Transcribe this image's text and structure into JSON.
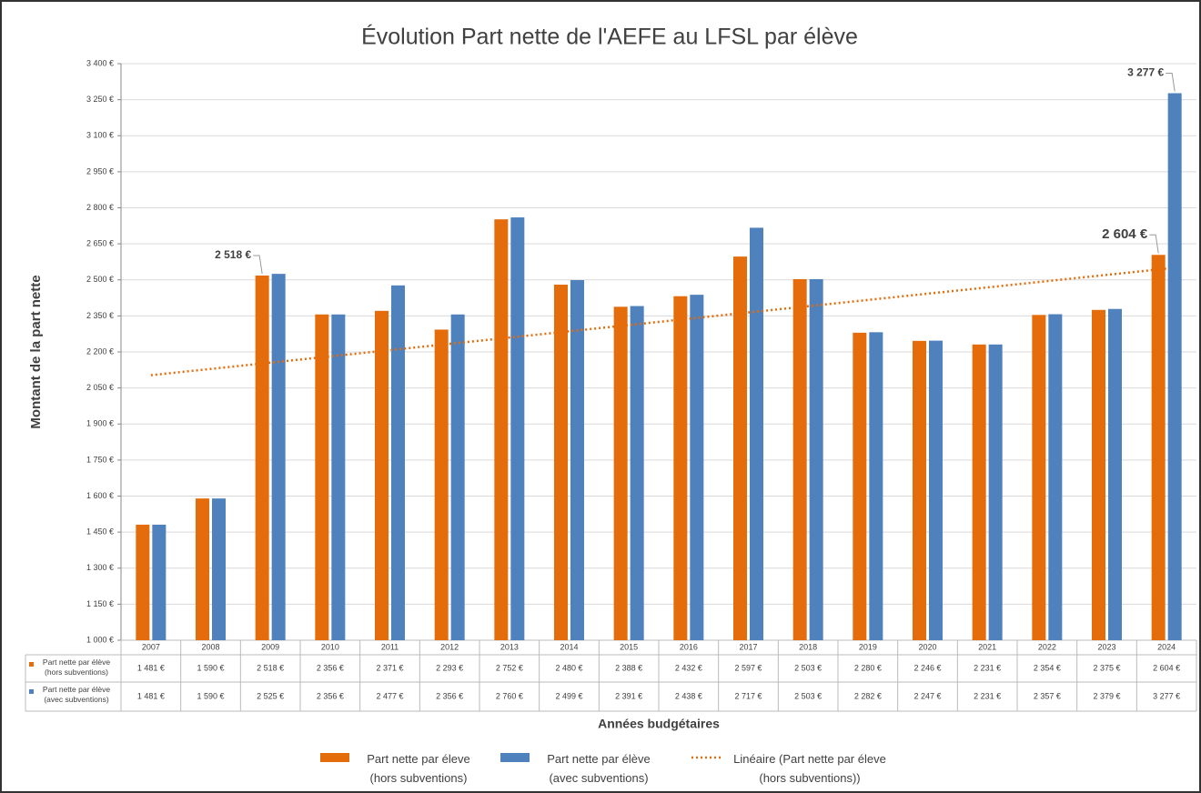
{
  "chart_data": {
    "type": "bar",
    "title": "Évolution Part nette de l'AEFE au LFSL par élève",
    "ylabel": "Montant de la part nette",
    "xlabel": "Années budgétaires",
    "categories": [
      "2007",
      "2008",
      "2009",
      "2010",
      "2011",
      "2012",
      "2013",
      "2014",
      "2015",
      "2016",
      "2017",
      "2018",
      "2019",
      "2020",
      "2021",
      "2022",
      "2023",
      "2024"
    ],
    "series": [
      {
        "name": "Part nette par élève (hors subventions)",
        "legend": "Part nette par éleve (hors subventions)",
        "color": "#e46c0a",
        "values": [
          1481,
          1590,
          2518,
          2356,
          2371,
          2293,
          2752,
          2480,
          2388,
          2432,
          2597,
          2503,
          2280,
          2246,
          2231,
          2354,
          2375,
          2604
        ],
        "value_labels": [
          "1 481 €",
          "1 590 €",
          "2 518 €",
          "2 356 €",
          "2 371 €",
          "2 293 €",
          "2 752 €",
          "2 480 €",
          "2 388 €",
          "2 432 €",
          "2 597 €",
          "2 503 €",
          "2 280 €",
          "2 246 €",
          "2 231 €",
          "2 354 €",
          "2 375 €",
          "2 604 €"
        ]
      },
      {
        "name": "Part nette par élève (avec subventions)",
        "legend": "Part nette par élève (avec subventions)",
        "color": "#4f81bd",
        "values": [
          1481,
          1590,
          2525,
          2356,
          2477,
          2356,
          2760,
          2499,
          2391,
          2438,
          2717,
          2503,
          2282,
          2247,
          2231,
          2357,
          2379,
          3277
        ],
        "value_labels": [
          "1 481 €",
          "1 590 €",
          "2 525 €",
          "2 356 €",
          "2 477 €",
          "2 356 €",
          "2 760 €",
          "2 499 €",
          "2 391 €",
          "2 438 €",
          "2 717 €",
          "2 503 €",
          "2 282 €",
          "2 247 €",
          "2 231 €",
          "2 357 €",
          "2 379 €",
          "3 277 €"
        ]
      }
    ],
    "trendline": {
      "label": "Linéaire (Part nette par éleve (hors subventions))",
      "series": 0,
      "color": "#e46c0a"
    },
    "callouts": [
      {
        "series": 0,
        "index": 2
      },
      {
        "series": 1,
        "index": 17
      },
      {
        "series": 0,
        "index": 17
      }
    ],
    "ylim": [
      1000,
      3400
    ],
    "yticks": [
      {
        "value": 1000,
        "label": "1 000 €"
      },
      {
        "value": 1150,
        "label": "1 150 €"
      },
      {
        "value": 1300,
        "label": "1 300 €"
      },
      {
        "value": 1450,
        "label": "1 450 €"
      },
      {
        "value": 1600,
        "label": "1 600 €"
      },
      {
        "value": 1750,
        "label": "1 750 €"
      },
      {
        "value": 1900,
        "label": "1 900 €"
      },
      {
        "value": 2050,
        "label": "2 050 €"
      },
      {
        "value": 2200,
        "label": "2 200 €"
      },
      {
        "value": 2350,
        "label": "2 350 €"
      },
      {
        "value": 2500,
        "label": "2 500 €"
      },
      {
        "value": 2650,
        "label": "2 650 €"
      },
      {
        "value": 2800,
        "label": "2 800 €"
      },
      {
        "value": 2950,
        "label": "2 950 €"
      },
      {
        "value": 3100,
        "label": "3 100 €"
      },
      {
        "value": 3250,
        "label": "3 250 €"
      },
      {
        "value": 3400,
        "label": "3 400 €"
      }
    ],
    "grid": true
  }
}
